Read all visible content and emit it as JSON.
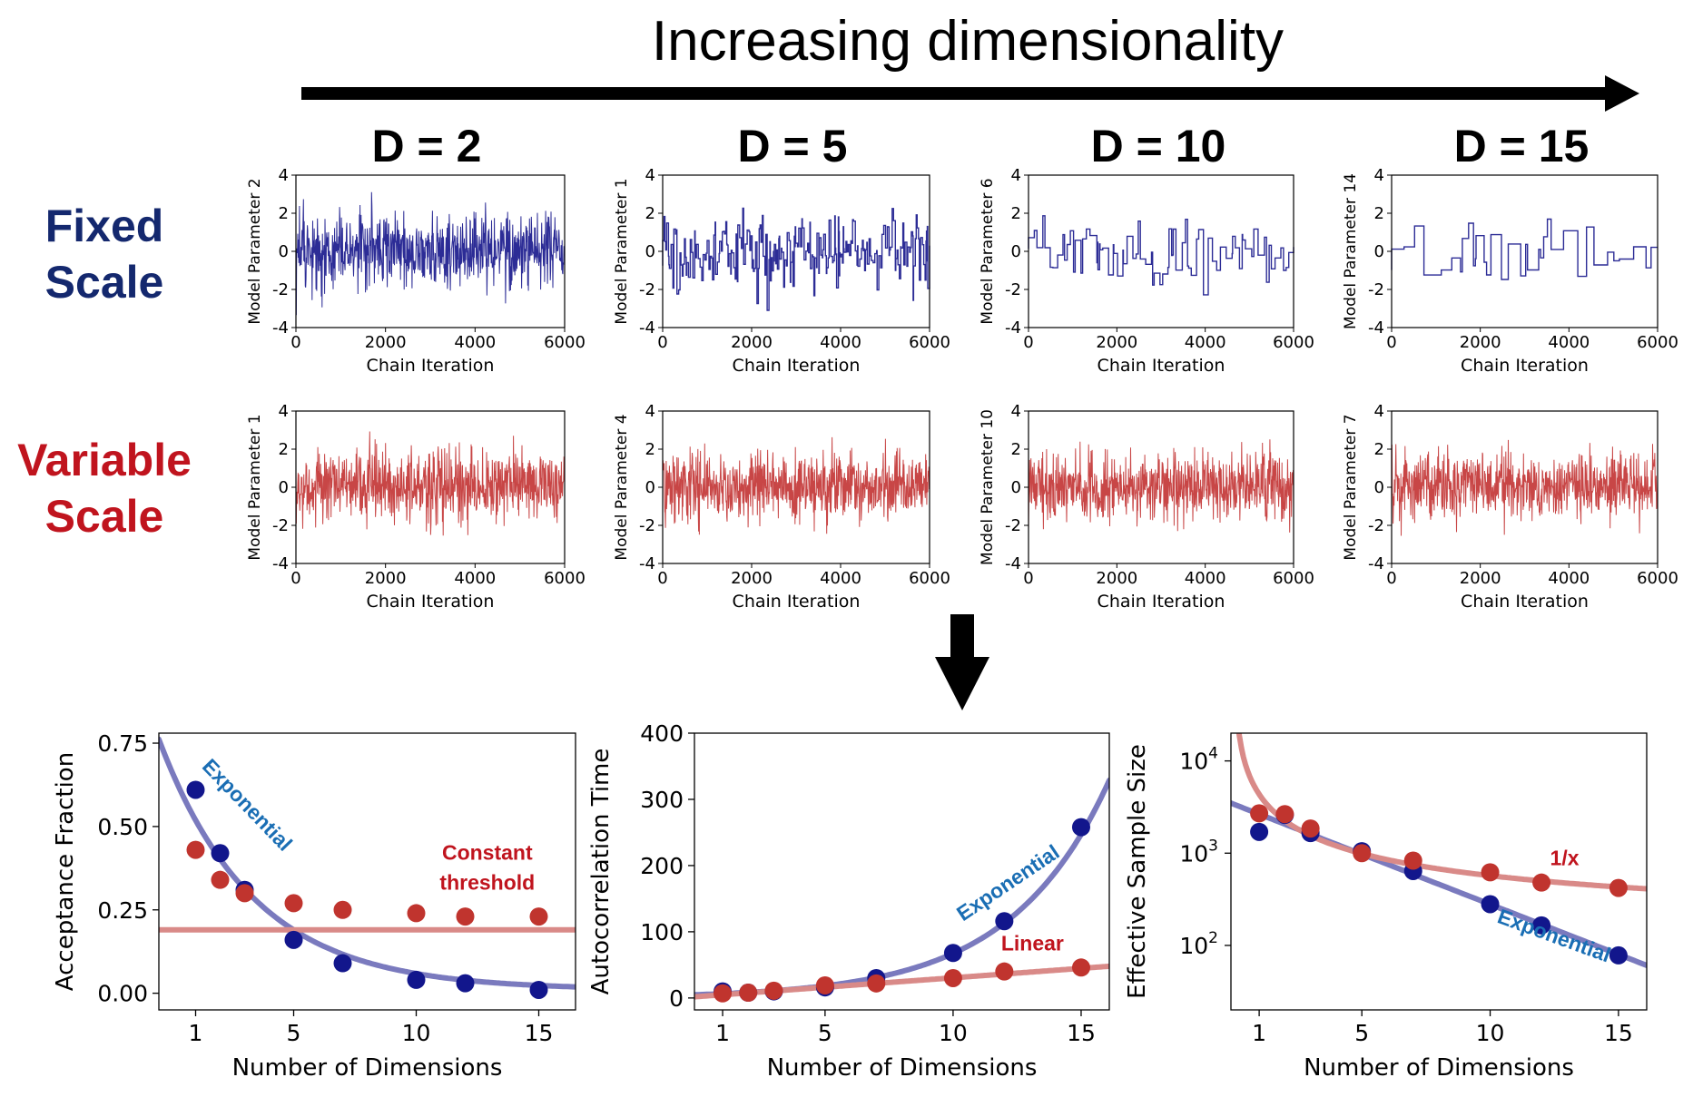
{
  "header": {
    "title": "Increasing dimensionality"
  },
  "rows": [
    {
      "line1": "Fixed",
      "line2": "Scale",
      "color": "#14286e"
    },
    {
      "line1": "Variable",
      "line2": "Scale",
      "color": "#c0141e"
    }
  ],
  "columns": [
    {
      "title": "D = 2",
      "dim": 2
    },
    {
      "title": "D = 5",
      "dim": 5
    },
    {
      "title": "D = 10",
      "dim": 10
    },
    {
      "title": "D = 15",
      "dim": 15
    }
  ],
  "colors": {
    "blue_trace": "#2c2c96",
    "red_trace": "#c84646",
    "blue_point": "#12168c",
    "red_point": "#c0342e",
    "blue_fit": "#7a7abe",
    "red_fit": "#d98a88",
    "blue_text": "#1a6eb4",
    "red_text": "#c0141e"
  },
  "chart_data": [
    {
      "id": "trace-fixed-d2",
      "type": "line",
      "series_name": "",
      "xlabel": "Chain Iteration",
      "ylabel": "Model Parameter 2",
      "xlim": [
        0,
        6000
      ],
      "ylim": [
        -4,
        4
      ],
      "xticks": [
        0,
        2000,
        4000,
        6000
      ],
      "yticks": [
        -4,
        -2,
        0,
        2,
        4
      ],
      "style": "fixed",
      "step": 8,
      "hold": 1,
      "seed": 11,
      "amp": 1.0
    },
    {
      "id": "trace-fixed-d5",
      "type": "line",
      "series_name": "",
      "xlabel": "Chain Iteration",
      "ylabel": "Model Parameter 1",
      "xlim": [
        0,
        6000
      ],
      "ylim": [
        -4,
        4
      ],
      "xticks": [
        0,
        2000,
        4000,
        6000
      ],
      "yticks": [
        -4,
        -2,
        0,
        2,
        4
      ],
      "style": "fixed",
      "step": 10,
      "hold": 2,
      "seed": 23,
      "amp": 1.0
    },
    {
      "id": "trace-fixed-d10",
      "type": "line",
      "series_name": "",
      "xlabel": "Chain Iteration",
      "ylabel": "Model Parameter 6",
      "xlim": [
        0,
        6000
      ],
      "ylim": [
        -4,
        4
      ],
      "xticks": [
        0,
        2000,
        4000,
        6000
      ],
      "yticks": [
        -4,
        -2,
        0,
        2,
        4
      ],
      "style": "fixed",
      "step": 12,
      "hold": 6,
      "seed": 37,
      "amp": 1.0
    },
    {
      "id": "trace-fixed-d15",
      "type": "line",
      "series_name": "",
      "xlabel": "Chain Iteration",
      "ylabel": "Model Parameter 14",
      "xlim": [
        0,
        6000
      ],
      "ylim": [
        -4,
        4
      ],
      "xticks": [
        0,
        2000,
        4000,
        6000
      ],
      "yticks": [
        -4,
        -2,
        0,
        2,
        4
      ],
      "style": "fixed",
      "step": 14,
      "hold": 14,
      "seed": 53,
      "amp": 0.9
    },
    {
      "id": "trace-variable-d2",
      "type": "line",
      "series_name": "",
      "xlabel": "Chain Iteration",
      "ylabel": "Model Parameter 1",
      "xlim": [
        0,
        6000
      ],
      "ylim": [
        -4,
        4
      ],
      "xticks": [
        0,
        2000,
        4000,
        6000
      ],
      "yticks": [
        -4,
        -2,
        0,
        2,
        4
      ],
      "style": "variable",
      "step": 8,
      "hold": 1,
      "seed": 61,
      "amp": 1.0
    },
    {
      "id": "trace-variable-d5",
      "type": "line",
      "series_name": "",
      "xlabel": "Chain Iteration",
      "ylabel": "Model Parameter 4",
      "xlim": [
        0,
        6000
      ],
      "ylim": [
        -4,
        4
      ],
      "xticks": [
        0,
        2000,
        4000,
        6000
      ],
      "yticks": [
        -4,
        -2,
        0,
        2,
        4
      ],
      "style": "variable",
      "step": 8,
      "hold": 1,
      "seed": 71,
      "amp": 0.95
    },
    {
      "id": "trace-variable-d10",
      "type": "line",
      "series_name": "",
      "xlabel": "Chain Iteration",
      "ylabel": "Model Parameter 10",
      "xlim": [
        0,
        6000
      ],
      "ylim": [
        -4,
        4
      ],
      "xticks": [
        0,
        2000,
        4000,
        6000
      ],
      "yticks": [
        -4,
        -2,
        0,
        2,
        4
      ],
      "style": "variable",
      "step": 8,
      "hold": 1,
      "seed": 83,
      "amp": 0.9
    },
    {
      "id": "trace-variable-d15",
      "type": "line",
      "series_name": "",
      "xlabel": "Chain Iteration",
      "ylabel": "Model Parameter 7",
      "xlim": [
        0,
        6000
      ],
      "ylim": [
        -4,
        4
      ],
      "xticks": [
        0,
        2000,
        4000,
        6000
      ],
      "yticks": [
        -4,
        -2,
        0,
        2,
        4
      ],
      "style": "variable",
      "step": 8,
      "hold": 1,
      "seed": 97,
      "amp": 0.9
    },
    {
      "id": "acceptance",
      "type": "scatter",
      "xlabel": "Number of Dimensions",
      "ylabel": "Acceptance Fraction",
      "xlim": [
        -0.5,
        16.5
      ],
      "ylim": [
        -0.05,
        0.78
      ],
      "yscale": "linear",
      "xticks": [
        1,
        5,
        10,
        15
      ],
      "yticks": [
        0.0,
        0.25,
        0.5,
        0.75
      ],
      "ytick_labels": [
        "0.00",
        "0.25",
        "0.50",
        "0.75"
      ],
      "series": [
        {
          "name": "Fixed Scale",
          "color_key": "blue",
          "x": [
            1,
            2,
            3,
            5,
            7,
            10,
            12,
            15
          ],
          "y": [
            0.61,
            0.42,
            0.31,
            0.16,
            0.09,
            0.04,
            0.03,
            0.01
          ]
        },
        {
          "name": "Variable Scale",
          "color_key": "red",
          "x": [
            1,
            2,
            3,
            5,
            7,
            10,
            12,
            15
          ],
          "y": [
            0.43,
            0.34,
            0.3,
            0.27,
            0.25,
            0.24,
            0.23,
            0.23
          ]
        }
      ],
      "fits": [
        {
          "color_key": "blue",
          "kind": "exp",
          "a": 0.66,
          "b": -0.26,
          "c": 0.01
        },
        {
          "color_key": "red",
          "kind": "const",
          "value": 0.19
        }
      ],
      "annotations": [
        {
          "text": "Exponential",
          "color_key": "blue_text",
          "x": 2.9,
          "y": 0.55,
          "rotate": 46
        },
        {
          "text": "Constant",
          "color_key": "red_text",
          "x": 12.9,
          "y": 0.4,
          "rotate": 0
        },
        {
          "text": "threshold",
          "color_key": "red_text",
          "x": 12.9,
          "y": 0.31,
          "rotate": 0
        }
      ]
    },
    {
      "id": "autocorrelation",
      "type": "scatter",
      "xlabel": "Number of Dimensions",
      "ylabel": "Autocorrelation Time",
      "xlim": [
        -0.1,
        16.1
      ],
      "ylim": [
        -18,
        400
      ],
      "yscale": "linear",
      "xticks": [
        1,
        5,
        10,
        15
      ],
      "yticks": [
        0,
        100,
        200,
        300,
        400
      ],
      "ytick_labels": [
        "0",
        "100",
        "200",
        "300",
        "400"
      ],
      "series": [
        {
          "name": "Fixed Scale",
          "color_key": "blue",
          "x": [
            1,
            2,
            3,
            5,
            7,
            10,
            12,
            15
          ],
          "y": [
            10,
            8,
            10,
            16,
            30,
            68,
            116,
            258
          ]
        },
        {
          "name": "Variable Scale",
          "color_key": "red",
          "x": [
            1,
            2,
            3,
            5,
            7,
            10,
            12,
            15
          ],
          "y": [
            7,
            8,
            11,
            19,
            22,
            30,
            40,
            46
          ]
        }
      ],
      "fits": [
        {
          "color_key": "blue",
          "kind": "exp",
          "a": 5.0,
          "b": 0.26,
          "c": 0
        },
        {
          "color_key": "red",
          "kind": "linear",
          "m": 2.85,
          "q": 2
        }
      ],
      "annotations": [
        {
          "text": "Exponential",
          "color_key": "blue_text",
          "x": 12.3,
          "y": 165,
          "rotate": -34
        },
        {
          "text": "Linear",
          "color_key": "red_text",
          "x": 13.1,
          "y": 72,
          "rotate": 0
        }
      ]
    },
    {
      "id": "ess",
      "type": "scatter",
      "xlabel": "Number of Dimensions",
      "ylabel": "Effective Sample Size",
      "xlim": [
        -0.1,
        16.1
      ],
      "ylim": [
        20,
        20000
      ],
      "yscale": "log",
      "xticks": [
        1,
        5,
        10,
        15
      ],
      "yticks": [
        100,
        1000,
        10000
      ],
      "ytick_labels": [
        "10",
        "10",
        "10"
      ],
      "ytick_exp": [
        "2",
        "3",
        "4"
      ],
      "series": [
        {
          "name": "Fixed Scale",
          "color_key": "blue",
          "x": [
            1,
            2,
            3,
            5,
            7,
            10,
            12,
            15
          ],
          "y": [
            1700,
            2600,
            1650,
            1050,
            640,
            280,
            165,
            78
          ]
        },
        {
          "name": "Variable Scale",
          "color_key": "red",
          "x": [
            1,
            2,
            3,
            5,
            7,
            10,
            12,
            15
          ],
          "y": [
            2700,
            2650,
            1850,
            1000,
            830,
            620,
            480,
            420
          ]
        }
      ],
      "fits": [
        {
          "color_key": "blue",
          "kind": "exp",
          "a": 3400,
          "b": -0.25,
          "c": 0
        },
        {
          "color_key": "red",
          "kind": "inv",
          "a": 4200,
          "c": 150
        }
      ],
      "annotations": [
        {
          "text": "1/x",
          "color_key": "red_text",
          "x": 12.9,
          "y": 740,
          "rotate": 0
        },
        {
          "text": "Exponential",
          "color_key": "blue_text",
          "x": 12.4,
          "y": 108,
          "rotate": 20
        }
      ]
    }
  ]
}
